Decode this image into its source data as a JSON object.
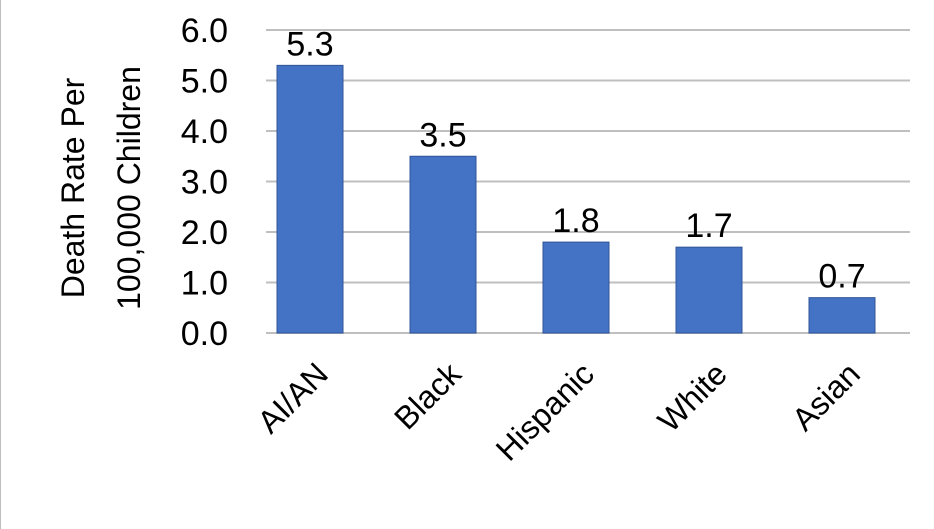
{
  "chart_data": {
    "type": "bar",
    "categories": [
      "AI/AN",
      "Black",
      "Hispanic",
      "White",
      "Asian"
    ],
    "values": [
      5.3,
      3.5,
      1.8,
      1.7,
      0.7
    ],
    "value_labels": [
      "5.3",
      "3.5",
      "1.8",
      "1.7",
      "0.7"
    ],
    "title": "",
    "xlabel": "",
    "ylabel_line1": "Death Rate Per",
    "ylabel_line2": "100,000 Children",
    "ylim": [
      0,
      6
    ],
    "yticks": [
      0,
      1,
      2,
      3,
      4,
      5,
      6
    ],
    "ytick_labels": [
      "0.0",
      "1.0",
      "2.0",
      "3.0",
      "4.0",
      "5.0",
      "6.0"
    ],
    "grid": true,
    "bar_color": "#4472c4"
  }
}
